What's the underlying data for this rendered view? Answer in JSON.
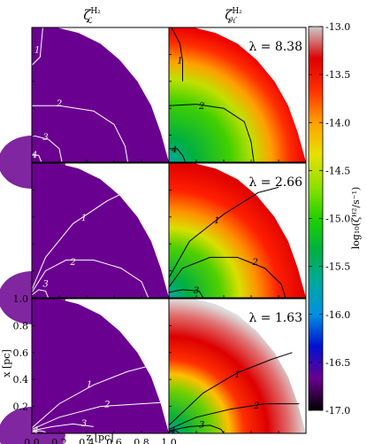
{
  "chart_data": {
    "type": "heatmap",
    "layout": "3 rows x 2 columns of panels",
    "column_titles": [
      {
        "symbol": "ζ",
        "superscript": "H₂",
        "subscript": "ℒ"
      },
      {
        "symbol": "ζ",
        "superscript": "H₂",
        "subscript": "ℋ"
      }
    ],
    "xlabel": "z [pc]",
    "ylabel": "x [pc]",
    "xlim": [
      0.0,
      1.0
    ],
    "ylim": [
      0.0,
      1.0
    ],
    "xticks": [
      "0.0",
      "0.2",
      "0.4",
      "0.6",
      "0.8",
      "1.0"
    ],
    "yticks": [
      "0.2",
      "0.4",
      "0.6",
      "0.8",
      "1.0"
    ],
    "colorbar": {
      "label": "log₁₀(ζᴴ²/s⁻¹)",
      "range": [
        -17.0,
        -13.0
      ],
      "ticks": [
        "-13.0",
        "-13.5",
        "-14.0",
        "-14.5",
        "-15.0",
        "-15.5",
        "-16.0",
        "-16.5",
        "-17.0"
      ],
      "colormap": [
        "#000000",
        "#6a0090",
        "#0010d0",
        "#0090e0",
        "#00a8a0",
        "#00b040",
        "#20d000",
        "#90e000",
        "#e8e000",
        "#ffa000",
        "#ff3000",
        "#dd0000",
        "#cccccc"
      ]
    },
    "rows": [
      {
        "lambda_label": "λ = 8.38",
        "contour_labels_left": [
          "1",
          "2",
          "3",
          "4"
        ],
        "contour_labels_right": [
          "1",
          "2",
          "4"
        ]
      },
      {
        "lambda_label": "λ = 2.66",
        "contour_labels_left": [
          "1",
          "2",
          "3"
        ],
        "contour_labels_right": [
          "1",
          "2",
          "3"
        ]
      },
      {
        "lambda_label": "λ = 1.63",
        "contour_labels_left": [
          "1",
          "2",
          "3",
          "4"
        ],
        "contour_labels_right": [
          "1",
          "2",
          "3",
          "4"
        ]
      }
    ],
    "colors": {
      "uniform_left": "#6a0090",
      "left_contour": "#ffffff",
      "right_contour": "#000000"
    }
  }
}
